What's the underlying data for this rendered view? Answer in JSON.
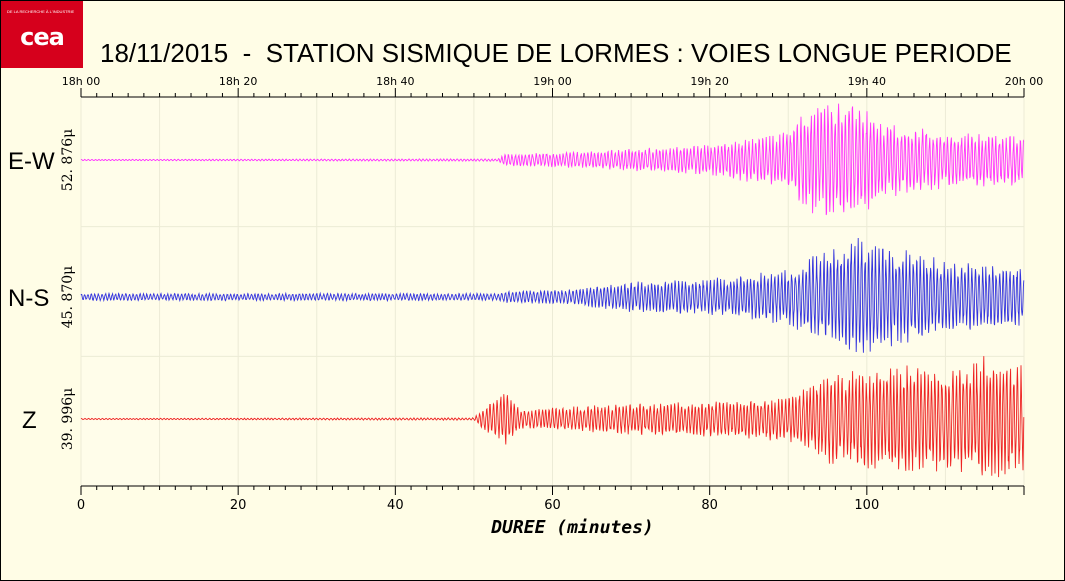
{
  "logo": {
    "text": "cea",
    "tagline": "DE LA RECHERCHE À L'INDUSTRIE"
  },
  "chart_data": {
    "type": "line",
    "title": "18/11/2015  -  STATION SISMIQUE DE LORMES : VOIES LONGUE PERIODE",
    "xlabel": "DUREE (minutes)",
    "xlim": [
      0,
      120
    ],
    "x_ticks": [
      "0",
      "20",
      "40",
      "60",
      "80",
      "100"
    ],
    "x_tick_values": [
      0,
      20,
      40,
      60,
      80,
      100
    ],
    "top_time_ticks": [
      "18h 00",
      "18h 20",
      "18h 40",
      "19h 00",
      "19h 20",
      "19h 40",
      "20h 00"
    ],
    "grid": true,
    "series": [
      {
        "name": "E-W",
        "amplitude": "52. 876μ",
        "color": "#ff33ff",
        "envelope": [
          [
            0,
            0.01
          ],
          [
            53,
            0.02
          ],
          [
            54,
            0.1
          ],
          [
            62,
            0.12
          ],
          [
            70,
            0.18
          ],
          [
            80,
            0.25
          ],
          [
            90,
            0.45
          ],
          [
            93,
            0.9
          ],
          [
            98,
            1.0
          ],
          [
            102,
            0.6
          ],
          [
            110,
            0.45
          ],
          [
            120,
            0.4
          ]
        ]
      },
      {
        "name": "N-S",
        "amplitude": "45. 870μ",
        "color": "#3333dd",
        "envelope": [
          [
            0,
            0.06
          ],
          [
            53,
            0.06
          ],
          [
            54,
            0.1
          ],
          [
            62,
            0.12
          ],
          [
            70,
            0.25
          ],
          [
            80,
            0.3
          ],
          [
            90,
            0.45
          ],
          [
            95,
            0.8
          ],
          [
            98,
            1.0
          ],
          [
            104,
            0.8
          ],
          [
            110,
            0.6
          ],
          [
            120,
            0.5
          ]
        ]
      },
      {
        "name": "Z",
        "amplitude": "39. 996μ",
        "color": "#ee2222",
        "envelope": [
          [
            0,
            0.01
          ],
          [
            50,
            0.02
          ],
          [
            51,
            0.15
          ],
          [
            54,
            0.45
          ],
          [
            56,
            0.15
          ],
          [
            70,
            0.25
          ],
          [
            80,
            0.28
          ],
          [
            90,
            0.35
          ],
          [
            95,
            0.7
          ],
          [
            105,
            0.9
          ],
          [
            110,
            0.8
          ],
          [
            115,
            1.0
          ],
          [
            120,
            0.9
          ]
        ]
      }
    ]
  }
}
